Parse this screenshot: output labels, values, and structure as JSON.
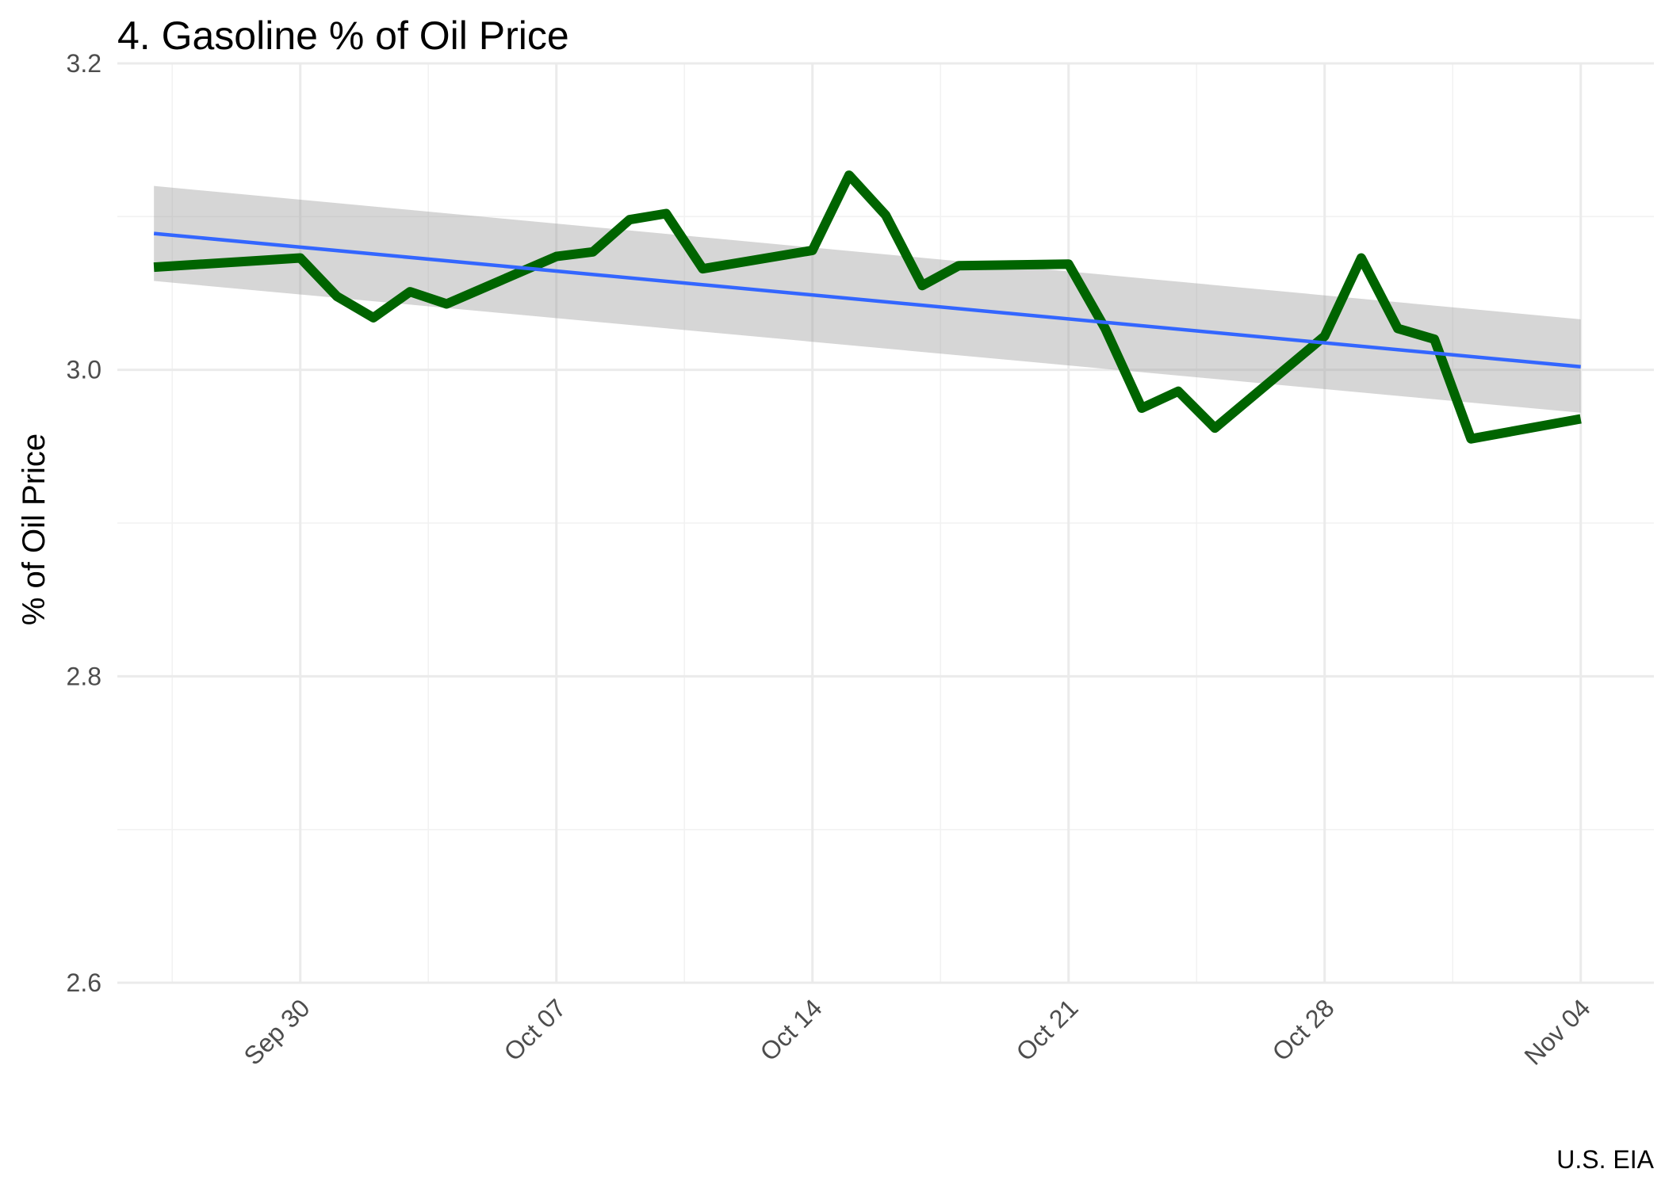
{
  "chart_data": {
    "type": "line",
    "title": "4. Gasoline % of Oil Price",
    "xlabel": "",
    "ylabel": "% of Oil Price",
    "caption": "U.S. EIA",
    "ylim": [
      2.6,
      3.2
    ],
    "y_ticks": [
      2.6,
      2.8,
      3.0,
      3.2
    ],
    "y_tick_labels": [
      "2.6",
      "2.8",
      "3.0",
      "3.2"
    ],
    "xlim": [
      "2024-09-25",
      "2024-11-06"
    ],
    "x_ticks": [
      "2024-09-30",
      "2024-10-07",
      "2024-10-14",
      "2024-10-21",
      "2024-10-28",
      "2024-11-04"
    ],
    "x_tick_labels": [
      "Sep 30",
      "Oct 07",
      "Oct 14",
      "Oct 21",
      "Oct 28",
      "Nov 04"
    ],
    "grid": true,
    "series": [
      {
        "color": "#006400",
        "x": [
          "2024-09-26",
          "2024-09-30",
          "2024-10-01",
          "2024-10-02",
          "2024-10-03",
          "2024-10-04",
          "2024-10-07",
          "2024-10-08",
          "2024-10-09",
          "2024-10-10",
          "2024-10-11",
          "2024-10-14",
          "2024-10-15",
          "2024-10-16",
          "2024-10-17",
          "2024-10-18",
          "2024-10-21",
          "2024-10-22",
          "2024-10-23",
          "2024-10-24",
          "2024-10-25",
          "2024-10-28",
          "2024-10-29",
          "2024-10-30",
          "2024-10-31",
          "2024-11-01",
          "2024-11-04"
        ],
        "y": [
          3.067,
          3.073,
          3.048,
          3.034,
          3.051,
          3.043,
          3.074,
          3.077,
          3.098,
          3.102,
          3.066,
          3.078,
          3.127,
          3.101,
          3.055,
          3.068,
          3.069,
          3.027,
          2.975,
          2.986,
          2.962,
          3.022,
          3.073,
          3.027,
          3.02,
          2.955,
          2.968
        ]
      }
    ],
    "trend": {
      "type": "linear",
      "color": "#3366ff",
      "band_color": "#999999",
      "x": [
        "2024-09-26",
        "2024-11-04"
      ],
      "y": [
        3.089,
        3.002
      ],
      "ci_lower": [
        3.058,
        2.972
      ],
      "ci_upper": [
        3.12,
        3.033
      ]
    }
  }
}
